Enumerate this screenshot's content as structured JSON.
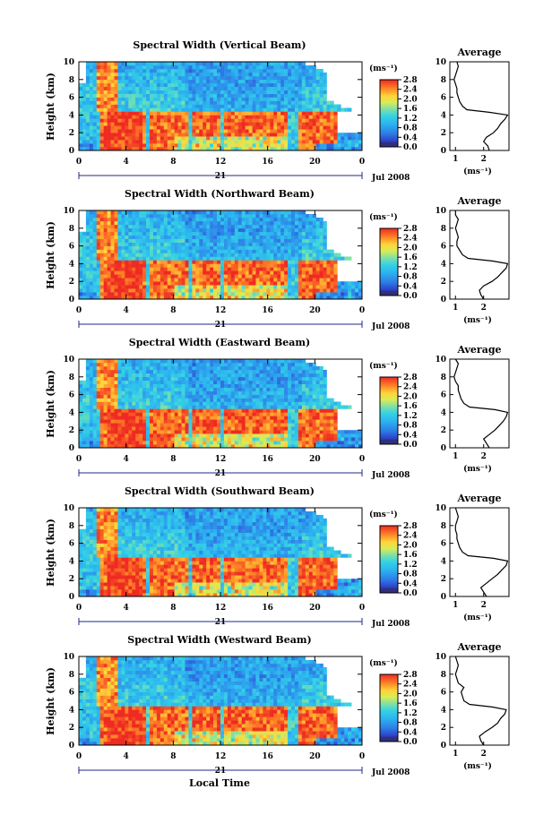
{
  "figure": {
    "xlabel": "Local Time",
    "date_label": "Jul 2008",
    "day_label": "21"
  },
  "chart_data": [
    {
      "type": "heatmap",
      "title": "Spectral Width (Vertical Beam)",
      "ylabel": "Height (km)",
      "xlabel": "Local Time",
      "xlim": [
        0,
        24
      ],
      "x_ticks": [
        "0",
        "4",
        "8",
        "12",
        "16",
        "20",
        "0"
      ],
      "ylim": [
        0,
        10
      ],
      "y_ticks": [
        "0",
        "2",
        "4",
        "6",
        "8",
        "10"
      ],
      "colorbar": {
        "unit": "(ms⁻¹)",
        "range": [
          0,
          2.8
        ],
        "ticks": [
          "2.8",
          "2.4",
          "2.0",
          "1.6",
          "1.2",
          "0.8",
          "0.4",
          "0.0"
        ]
      },
      "profile": {
        "title": "Average",
        "xlabel": "(ms⁻¹)",
        "xlim": [
          0.8,
          2.9
        ],
        "x_ticks": [
          "1",
          "2"
        ],
        "ylim": [
          0,
          10
        ],
        "y_ticks": [
          "0",
          "2",
          "4",
          "6",
          "8",
          "10"
        ],
        "height": [
          0.0,
          0.5,
          1.0,
          1.5,
          2.0,
          2.5,
          3.0,
          3.5,
          4.0,
          4.3,
          4.6,
          5.0,
          5.5,
          6.0,
          6.5,
          7.0,
          7.5,
          8.0,
          8.5,
          9.0,
          9.5,
          10.0
        ],
        "width": [
          2.2,
          2.15,
          2.0,
          2.1,
          2.35,
          2.5,
          2.6,
          2.75,
          2.85,
          2.2,
          1.4,
          1.25,
          1.15,
          1.1,
          1.05,
          1.05,
          1.0,
          0.95,
          1.0,
          1.05,
          1.1,
          1.05
        ]
      }
    },
    {
      "type": "heatmap",
      "title": "Spectral Width (Northward Beam)",
      "ylabel": "Height (km)",
      "xlabel": "Local Time",
      "xlim": [
        0,
        24
      ],
      "x_ticks": [
        "0",
        "4",
        "8",
        "12",
        "16",
        "20",
        "0"
      ],
      "ylim": [
        0,
        10
      ],
      "y_ticks": [
        "0",
        "2",
        "4",
        "6",
        "8",
        "10"
      ],
      "colorbar": {
        "unit": "(ms⁻¹)",
        "range": [
          0,
          2.8
        ],
        "ticks": [
          "2.8",
          "2.4",
          "2.0",
          "1.6",
          "1.2",
          "0.8",
          "0.4",
          "0.0"
        ]
      },
      "profile": {
        "title": "Average",
        "xlabel": "(ms⁻¹)",
        "xlim": [
          0.8,
          2.9
        ],
        "x_ticks": [
          "1",
          "2"
        ],
        "ylim": [
          0,
          10
        ],
        "y_ticks": [
          "0",
          "2",
          "4",
          "6",
          "8",
          "10"
        ],
        "height": [
          0.0,
          0.5,
          1.0,
          1.5,
          2.0,
          2.5,
          3.0,
          3.5,
          4.0,
          4.3,
          4.6,
          5.0,
          5.5,
          6.0,
          6.5,
          7.0,
          7.5,
          8.0,
          8.5,
          9.0,
          9.5,
          10.0
        ],
        "width": [
          2.0,
          1.9,
          1.85,
          2.0,
          2.3,
          2.5,
          2.65,
          2.8,
          2.85,
          2.3,
          1.45,
          1.25,
          1.15,
          1.05,
          1.05,
          1.1,
          1.05,
          1.0,
          1.05,
          1.1,
          1.0,
          1.0
        ]
      }
    },
    {
      "type": "heatmap",
      "title": "Spectral Width (Eastward Beam)",
      "ylabel": "Height (km)",
      "xlabel": "Local Time",
      "xlim": [
        0,
        24
      ],
      "x_ticks": [
        "0",
        "4",
        "8",
        "12",
        "16",
        "20",
        "0"
      ],
      "ylim": [
        0,
        10
      ],
      "y_ticks": [
        "0",
        "2",
        "4",
        "6",
        "8",
        "10"
      ],
      "colorbar": {
        "unit": "(ms⁻¹)",
        "range": [
          0,
          2.8
        ],
        "ticks": [
          "2.8",
          "2.4",
          "2.0",
          "1.6",
          "1.2",
          "0.8",
          "0.4",
          "0.0"
        ]
      },
      "profile": {
        "title": "Average",
        "xlabel": "(ms⁻¹)",
        "xlim": [
          0.8,
          2.9
        ],
        "x_ticks": [
          "1",
          "2"
        ],
        "ylim": [
          0,
          10
        ],
        "y_ticks": [
          "0",
          "2",
          "4",
          "6",
          "8",
          "10"
        ],
        "height": [
          0.0,
          0.5,
          1.0,
          1.5,
          2.0,
          2.5,
          3.0,
          3.5,
          4.0,
          4.3,
          4.6,
          5.0,
          5.5,
          6.0,
          6.5,
          7.0,
          7.5,
          8.0,
          8.5,
          9.0,
          9.5,
          10.0
        ],
        "width": [
          2.2,
          2.1,
          2.0,
          2.2,
          2.4,
          2.55,
          2.7,
          2.8,
          2.85,
          2.4,
          1.5,
          1.3,
          1.2,
          1.15,
          1.1,
          1.1,
          1.0,
          0.95,
          1.0,
          1.05,
          1.1,
          1.0
        ]
      }
    },
    {
      "type": "heatmap",
      "title": "Spectral Width (Southward Beam)",
      "ylabel": "Height (km)",
      "xlabel": "Local Time",
      "xlim": [
        0,
        24
      ],
      "x_ticks": [
        "0",
        "4",
        "8",
        "12",
        "16",
        "20",
        "0"
      ],
      "ylim": [
        0,
        10
      ],
      "y_ticks": [
        "0",
        "2",
        "4",
        "6",
        "8",
        "10"
      ],
      "colorbar": {
        "unit": "(ms⁻¹)",
        "range": [
          0,
          2.8
        ],
        "ticks": [
          "2.8",
          "2.4",
          "2.0",
          "1.6",
          "1.2",
          "0.8",
          "0.4",
          "0.0"
        ]
      },
      "profile": {
        "title": "Average",
        "xlabel": "(ms⁻¹)",
        "xlim": [
          0.8,
          2.9
        ],
        "x_ticks": [
          "1",
          "2"
        ],
        "ylim": [
          0,
          10
        ],
        "y_ticks": [
          "0",
          "2",
          "4",
          "6",
          "8",
          "10"
        ],
        "height": [
          0.0,
          0.5,
          1.0,
          1.5,
          2.0,
          2.5,
          3.0,
          3.5,
          4.0,
          4.3,
          4.6,
          5.0,
          5.5,
          6.0,
          6.5,
          7.0,
          7.5,
          8.0,
          8.5,
          9.0,
          9.5,
          10.0
        ],
        "width": [
          2.1,
          2.0,
          1.9,
          2.1,
          2.3,
          2.5,
          2.65,
          2.8,
          2.85,
          2.35,
          1.45,
          1.25,
          1.15,
          1.1,
          1.05,
          1.05,
          1.0,
          1.0,
          1.05,
          1.1,
          1.05,
          1.0
        ]
      }
    },
    {
      "type": "heatmap",
      "title": "Spectral Width (Westward Beam)",
      "ylabel": "Height (km)",
      "xlabel": "Local Time",
      "xlim": [
        0,
        24
      ],
      "x_ticks": [
        "0",
        "4",
        "8",
        "12",
        "16",
        "20",
        "0"
      ],
      "ylim": [
        0,
        10
      ],
      "y_ticks": [
        "0",
        "2",
        "4",
        "6",
        "8",
        "10"
      ],
      "colorbar": {
        "unit": "(ms⁻¹)",
        "range": [
          0,
          2.8
        ],
        "ticks": [
          "2.8",
          "2.4",
          "2.0",
          "1.6",
          "1.2",
          "0.8",
          "0.4",
          "0.0"
        ]
      },
      "profile": {
        "title": "Average",
        "xlabel": "(ms⁻¹)",
        "xlim": [
          0.8,
          2.9
        ],
        "x_ticks": [
          "1",
          "2"
        ],
        "ylim": [
          0,
          10
        ],
        "y_ticks": [
          "0",
          "2",
          "4",
          "6",
          "8",
          "10"
        ],
        "height": [
          0.0,
          0.5,
          1.0,
          1.5,
          2.0,
          2.5,
          3.0,
          3.5,
          4.0,
          4.3,
          4.6,
          5.0,
          5.5,
          6.0,
          6.5,
          7.0,
          7.5,
          8.0,
          8.5,
          9.0,
          9.5,
          10.0
        ],
        "width": [
          2.0,
          1.9,
          1.85,
          2.05,
          2.3,
          2.5,
          2.6,
          2.75,
          2.8,
          2.3,
          1.5,
          1.3,
          1.25,
          1.2,
          1.3,
          1.1,
          1.05,
          1.0,
          1.05,
          1.1,
          1.05,
          1.0
        ]
      }
    }
  ]
}
